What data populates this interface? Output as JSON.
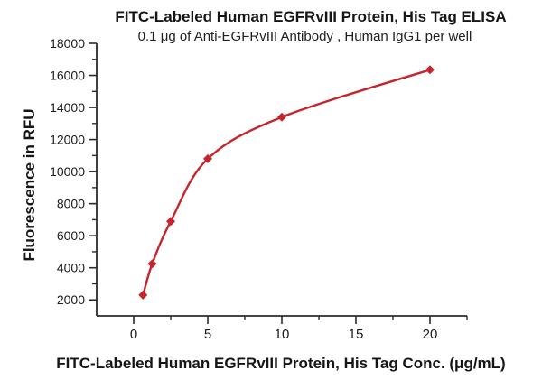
{
  "chart_data": {
    "type": "line",
    "title": "FITC-Labeled Human EGFRvIII Protein, His Tag ELISA",
    "subtitle": "0.1 μg of Anti-EGFRvIII Antibody , Human IgG1 per well",
    "xlabel": "FITC-Labeled Human EGFRvIII Protein, His Tag Conc. (μg/mL)",
    "ylabel": "Fluorescence in RFU",
    "x": [
      0.625,
      1.25,
      2.5,
      5,
      10,
      20
    ],
    "y": [
      2300,
      4250,
      6900,
      10800,
      13400,
      16350
    ],
    "marker": "diamond",
    "line_color": "#c5262d",
    "marker_color": "#c5262d",
    "axis_color": "#2b2b2b",
    "text_color": "#1c1c1c",
    "xlim": [
      -2.5,
      22.5
    ],
    "ylim": [
      1000,
      18000
    ],
    "x_major_ticks": [
      0,
      5,
      10,
      15,
      20
    ],
    "x_minor_ticks": [
      2.5,
      7.5,
      12.5,
      17.5,
      22.5
    ],
    "y_major_ticks": [
      2000,
      4000,
      6000,
      8000,
      10000,
      12000,
      14000,
      16000,
      18000
    ],
    "y_minor_ticks": [
      3000,
      5000,
      7000,
      9000,
      11000,
      13000,
      15000,
      17000
    ],
    "grid": false,
    "legend": "none"
  }
}
